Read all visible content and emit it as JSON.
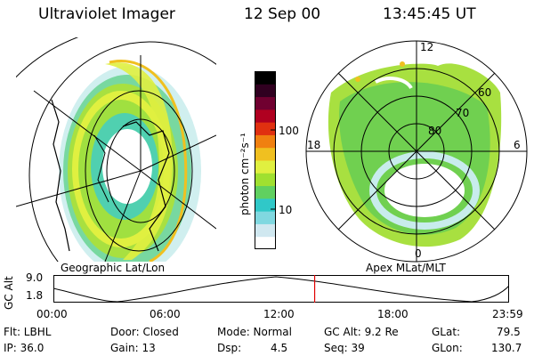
{
  "header": {
    "instrument": "Ultraviolet Imager",
    "date": "12 Sep 00",
    "time": "13:45:45 UT"
  },
  "left_panel": {
    "caption": "Geographic Lat/Lon"
  },
  "right_panel": {
    "caption": "Apex MLat/MLT",
    "mlt_labels": {
      "top": "12",
      "left": "18",
      "right": "6",
      "bottom": "0"
    },
    "lat_labels": [
      "60",
      "70",
      "80"
    ]
  },
  "colorbar": {
    "unit_label": "photon cm⁻²s⁻¹",
    "ticks": [
      "100",
      "10"
    ],
    "colors": [
      "#ffffff",
      "#d0e8f0",
      "#80d8e0",
      "#30c8c8",
      "#60d060",
      "#a0e030",
      "#e0f040",
      "#f0c020",
      "#f08010",
      "#e03010",
      "#b00020",
      "#700030",
      "#300020",
      "#000000"
    ]
  },
  "altitude_strip": {
    "axis_label": "GC Alt",
    "y_ticks": [
      "9.0",
      "1.8"
    ],
    "x_ticks": [
      "00:00",
      "06:00",
      "12:00",
      "18:00",
      "23:59"
    ],
    "marker_time_hours": 13.76,
    "marker_color": "#e00000"
  },
  "status": {
    "filter": "Flt: LBHL",
    "ip": "IP: 36.0",
    "door": "Door: Closed",
    "gain": "Gain: 13",
    "mode": "Mode: Normal",
    "dsp_label": "Dsp:",
    "dsp_value": "4.5",
    "gc_alt": "GC Alt: 9.2 Re",
    "seq": "Seq: 39",
    "glat_label": "GLat:",
    "glat_value": "79.5",
    "glon_label": "GLon:",
    "glon_value": "130.7"
  }
}
